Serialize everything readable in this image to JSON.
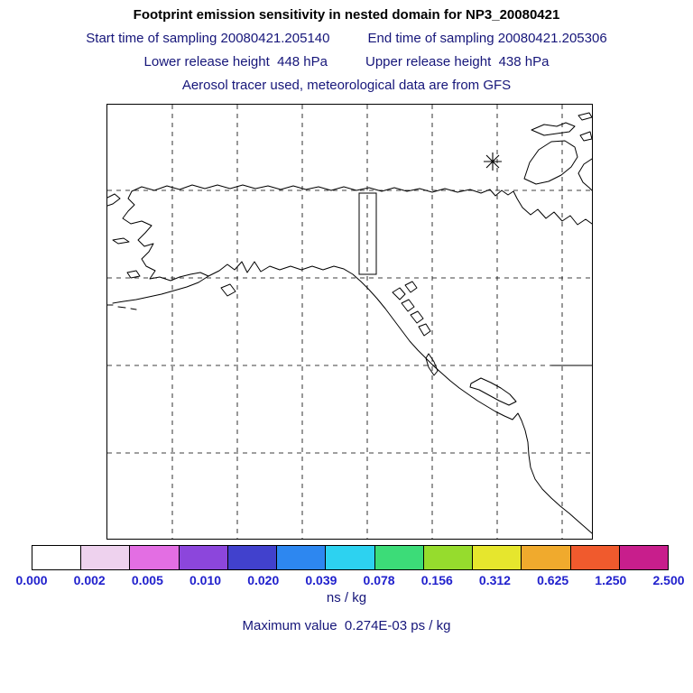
{
  "header": {
    "title": "Footprint emission sensitivity in nested domain for NP3_20080421",
    "start_time_label": "Start time of sampling 20080421.205140",
    "end_time_label": "End time of sampling 20080421.205306",
    "lower_release_label": "Lower release height  448 hPa",
    "upper_release_label": "Upper release height  438 hPa",
    "tracer_line": "Aerosol tracer used, meteorological data are from GFS",
    "text_color": "#16167a",
    "title_color": "#000000"
  },
  "map": {
    "region": "Alaska / northwest North America coastline map",
    "marker": "asterisk release-receptor location in upper right of map",
    "nested_domain_box": "small rectangle outline near top center of map"
  },
  "colorbar": {
    "labels": [
      "0.000",
      "0.002",
      "0.005",
      "0.010",
      "0.020",
      "0.039",
      "0.078",
      "0.156",
      "0.312",
      "0.625",
      "1.250",
      "2.500"
    ],
    "colors": [
      "#ffffff",
      "#eed2ee",
      "#e36ee3",
      "#8c46dc",
      "#4141cd",
      "#2d87f0",
      "#2dd2f0",
      "#3cdc78",
      "#96dc2d",
      "#e6e62d",
      "#f0aa2d",
      "#f05a2d",
      "#c81e8c"
    ],
    "units": "ns / kg",
    "label_color": "#2121cd"
  },
  "footer": {
    "maximum_value_line": "Maximum value  0.274E-03 ps / kg"
  },
  "chart_data": {
    "type": "heatmap",
    "title": "Footprint emission sensitivity in nested domain for NP3_20080421",
    "description": "Geographic footprint sensitivity map over Alaska, western Canada and the US west coast; sensitivity field values are below the lowest color level so the map area appears uncolored except coastlines, dashed graticule lines, a nested-domain rectangle and an asterisk marker at the receptor location.",
    "start_time_of_sampling": "20080421.205140",
    "end_time_of_sampling": "20080421.205306",
    "lower_release_height": "448 hPa",
    "upper_release_height": "438 hPa",
    "tracer": "Aerosol",
    "meteorology_source": "GFS",
    "colorbar_levels": [
      0.0,
      0.002,
      0.005,
      0.01,
      0.02,
      0.039,
      0.078,
      0.156,
      0.312,
      0.625,
      1.25,
      2.5
    ],
    "colorbar_units": "ns / kg",
    "maximum_value": "0.274E-03 ps / kg",
    "legend_position": "bottom horizontal colorbar",
    "grid": "dashed graticule, 7 vertical and 4 horizontal lines"
  }
}
